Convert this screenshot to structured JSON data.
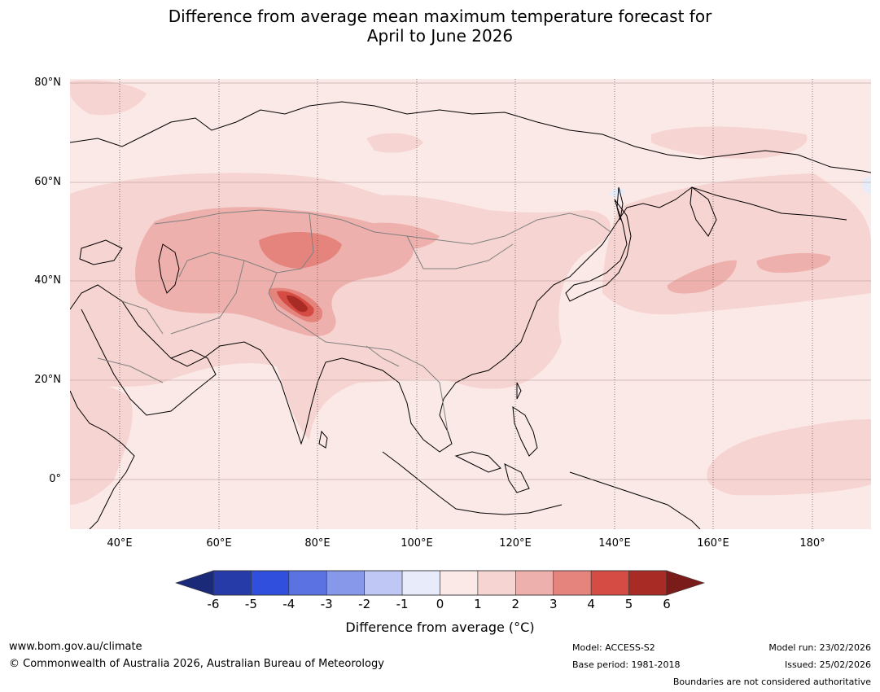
{
  "title": {
    "line1": "Difference from average mean maximum temperature forecast for",
    "line2": "April to June 2026"
  },
  "map": {
    "lat_labels": [
      "80°N",
      "60°N",
      "40°N",
      "20°N",
      "0°"
    ],
    "lon_labels": [
      "40°E",
      "60°E",
      "80°E",
      "100°E",
      "120°E",
      "140°E",
      "160°E",
      "180°"
    ],
    "extent": {
      "lon_min": 30,
      "lon_max": 191,
      "lat_min": -10,
      "lat_max": 81
    },
    "colors": {
      "ocean_bg": "#fbe9e7",
      "light": "#f6d4d1",
      "mid": "#eeb0ac",
      "strong": "#e5847d",
      "deep": "#d44c43",
      "darkest": "#a92b25",
      "cool": "#e7ecf9",
      "coast": "#000000",
      "border": "#808080"
    }
  },
  "colorbar": {
    "ticks": [
      "-6",
      "-5",
      "-4",
      "-3",
      "-2",
      "-1",
      "0",
      "1",
      "2",
      "3",
      "4",
      "5",
      "6"
    ],
    "colors": [
      "#263aa8",
      "#2f4fdc",
      "#5b72e2",
      "#8797ea",
      "#bfc7f4",
      "#e7ebfa",
      "#fbe9e7",
      "#f6d4d1",
      "#eeb0ac",
      "#e5847d",
      "#d44c43",
      "#a92b25"
    ],
    "under_color": "#1b2a78",
    "over_color": "#7a1d1a",
    "label": "Difference from average (°C)"
  },
  "footer": {
    "url": "www.bom.gov.au/climate",
    "copyright": "© Commonwealth of Australia 2026, Australian Bureau of Meteorology",
    "model": "Model: ACCESS-S2",
    "base_period": "Base period: 1981-2018",
    "model_run": "Model run: 23/02/2026",
    "issued": "Issued: 25/02/2026",
    "disclaimer": "Boundaries are not considered authoritative"
  }
}
